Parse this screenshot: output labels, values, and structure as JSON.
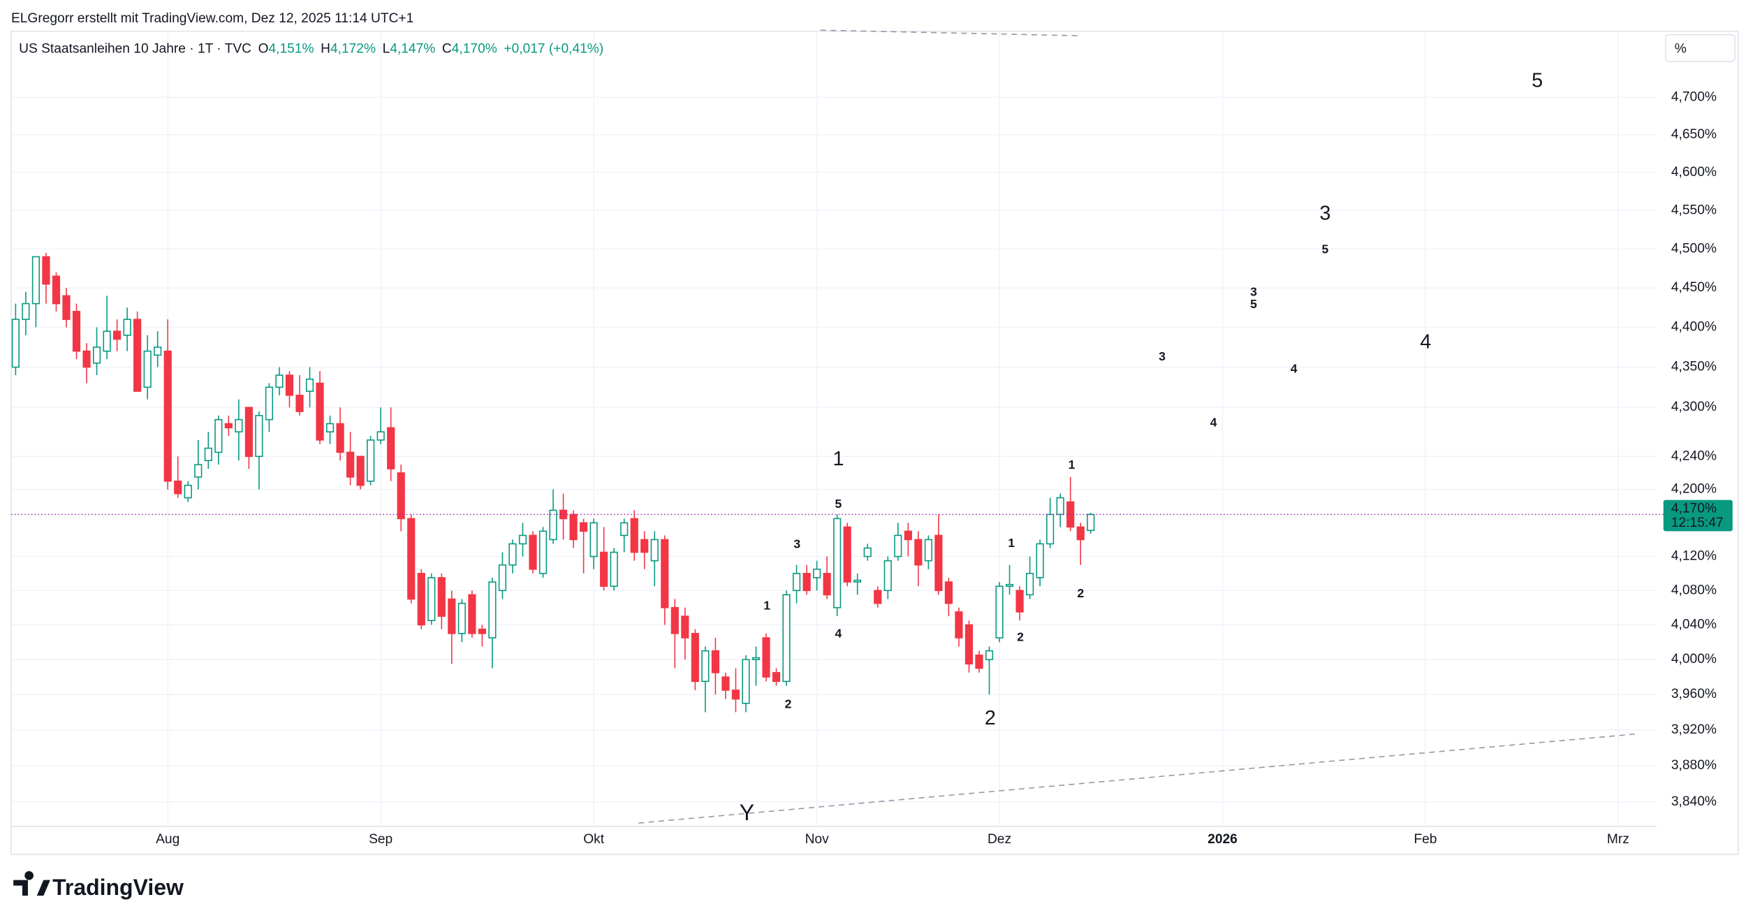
{
  "header": {
    "credit": "ELGregorr erstellt mit TradingView.com, Dez 12, 2025 11:14 UTC+1"
  },
  "legend": {
    "symbol": "US Staatsanleihen 10 Jahre · 1T · TVC",
    "items": [
      {
        "key": "O",
        "value": "4,151%"
      },
      {
        "key": "H",
        "value": "4,172%"
      },
      {
        "key": "L",
        "value": "4,147%"
      },
      {
        "key": "C",
        "value": "4,170%"
      }
    ],
    "change": "+0,017 (+0,41%)"
  },
  "price_label": {
    "value": "4,170%",
    "countdown": "12:15:47"
  },
  "footer": {
    "logo": "TradingView"
  },
  "annotations": [
    {
      "text": "5",
      "color": "#43a047"
    },
    {
      "text": "3",
      "color": "#43a047"
    },
    {
      "text": "5",
      "color": "#131722"
    },
    {
      "text": "3",
      "color": "#131722"
    },
    {
      "text": "5",
      "color": "#e91e63"
    },
    {
      "text": "3",
      "color": "#e91e63"
    },
    {
      "text": "4",
      "color": "#131722"
    },
    {
      "text": "4",
      "color": "#43a047"
    },
    {
      "text": "4",
      "color": "#e91e63"
    },
    {
      "text": "1",
      "color": "#43a047"
    },
    {
      "text": "5",
      "color": "#131722"
    },
    {
      "text": "1",
      "color": "#e91e63"
    },
    {
      "text": "3",
      "color": "#131722"
    },
    {
      "text": "1",
      "color": "#131722"
    },
    {
      "text": "1",
      "color": "#131722"
    },
    {
      "text": "2",
      "color": "#e91e63"
    },
    {
      "text": "4",
      "color": "#131722"
    },
    {
      "text": "2",
      "color": "#131722"
    },
    {
      "text": "2",
      "color": "#131722"
    },
    {
      "text": "2",
      "color": "#43a047"
    },
    {
      "text": "Y",
      "color": "#9598a1"
    }
  ],
  "chart_data": {
    "type": "candlestick",
    "log_scale": true,
    "grid": true,
    "up_color": "#089981",
    "down_color": "#f23645",
    "y_unit": "%",
    "ylim": [
      3.813,
      4.79
    ],
    "yticks": [
      {
        "value": 3.84,
        "label": "3,840%"
      },
      {
        "value": 3.88,
        "label": "3,880%"
      },
      {
        "value": 3.92,
        "label": "3,920%"
      },
      {
        "value": 3.96,
        "label": "3,960%"
      },
      {
        "value": 4.0,
        "label": "4,000%"
      },
      {
        "value": 4.04,
        "label": "4,040%"
      },
      {
        "value": 4.08,
        "label": "4,080%"
      },
      {
        "value": 4.12,
        "label": "4,120%"
      },
      {
        "value": 4.2,
        "label": "4,200%"
      },
      {
        "value": 4.24,
        "label": "4,240%"
      },
      {
        "value": 4.3,
        "label": "4,300%"
      },
      {
        "value": 4.35,
        "label": "4,350%"
      },
      {
        "value": 4.4,
        "label": "4,400%"
      },
      {
        "value": 4.45,
        "label": "4,450%"
      },
      {
        "value": 4.5,
        "label": "4,500%"
      },
      {
        "value": 4.55,
        "label": "4,550%"
      },
      {
        "value": 4.6,
        "label": "4,600%"
      },
      {
        "value": 4.65,
        "label": "4,650%"
      },
      {
        "value": 4.7,
        "label": "4,700%"
      }
    ],
    "categories": [
      null,
      null,
      null,
      null,
      null,
      null,
      null,
      null,
      null,
      null,
      null,
      null,
      null,
      null,
      null,
      "Aug",
      null,
      null,
      null,
      null,
      null,
      null,
      null,
      null,
      null,
      null,
      null,
      null,
      null,
      null,
      null,
      null,
      null,
      null,
      null,
      null,
      "Sep",
      null,
      null,
      null,
      null,
      null,
      null,
      null,
      null,
      null,
      null,
      null,
      null,
      null,
      null,
      null,
      null,
      null,
      null,
      null,
      null,
      "Okt",
      null,
      null,
      null,
      null,
      null,
      null,
      null,
      null,
      null,
      null,
      null,
      null,
      null,
      null,
      null,
      null,
      null,
      null,
      null,
      null,
      null,
      "Nov",
      null,
      null,
      null,
      null,
      null,
      null,
      null,
      null,
      null,
      null,
      null,
      null,
      null,
      null,
      null,
      null,
      null,
      "Dez",
      null,
      null,
      null,
      null,
      null,
      null,
      null,
      null,
      null,
      null,
      null,
      null,
      null,
      null,
      null,
      null,
      null,
      null,
      null,
      null,
      null,
      "2026",
      null,
      null,
      null,
      null,
      null,
      null,
      null,
      null,
      null,
      null,
      null,
      null,
      null,
      null,
      null,
      null,
      null,
      null,
      null,
      "Feb",
      null,
      null,
      null,
      null,
      null,
      null,
      null,
      null,
      null,
      null,
      null,
      null,
      null,
      null,
      null,
      null,
      null,
      null,
      "Mrz",
      null,
      null,
      null
    ],
    "open": [
      4.35,
      4.41,
      4.43,
      4.49,
      4.465,
      4.44,
      4.42,
      4.37,
      4.355,
      4.37,
      4.395,
      4.39,
      4.41,
      4.325,
      4.365,
      4.37,
      4.21,
      4.19,
      4.215,
      4.235,
      4.245,
      4.28,
      4.27,
      4.3,
      4.24,
      4.285,
      4.325,
      4.34,
      4.315,
      4.32,
      4.33,
      4.27,
      4.28,
      4.245,
      4.24,
      4.21,
      4.26,
      4.275,
      4.22,
      4.165,
      4.1,
      4.045,
      4.095,
      4.07,
      4.03,
      4.075,
      4.035,
      4.025,
      4.08,
      4.11,
      4.135,
      4.145,
      4.1,
      4.14,
      4.175,
      4.17,
      4.16,
      4.12,
      4.125,
      4.085,
      4.145,
      4.165,
      4.14,
      4.115,
      4.14,
      4.06,
      4.05,
      4.03,
      3.975,
      4.01,
      3.98,
      3.965,
      3.95,
      4.0,
      4.025,
      3.985,
      3.975,
      4.08,
      4.1,
      4.095,
      4.1,
      4.06,
      4.155,
      4.09,
      4.12,
      4.08,
      4.08,
      4.12,
      4.15,
      4.14,
      4.115,
      4.145,
      4.09,
      4.055,
      4.04,
      4.005,
      4.0,
      4.025,
      4.085,
      4.08,
      4.075,
      4.095,
      4.135,
      4.17,
      4.185,
      4.155,
      4.151,
      null,
      null,
      null,
      null,
      null,
      null,
      null,
      null,
      null,
      null,
      null,
      null,
      null,
      null,
      null,
      null,
      null,
      null,
      null,
      null,
      null,
      null,
      null,
      null,
      null,
      null,
      null,
      null,
      null,
      null,
      null,
      null,
      null,
      null,
      null,
      null,
      null,
      null,
      null,
      null,
      null,
      null,
      null,
      null,
      null,
      null,
      null,
      null,
      null,
      null,
      null,
      null,
      null,
      null,
      null
    ],
    "high": [
      4.43,
      4.445,
      4.49,
      4.495,
      4.47,
      4.45,
      4.43,
      4.38,
      4.4,
      4.44,
      4.41,
      4.425,
      4.42,
      4.39,
      4.395,
      4.41,
      4.24,
      4.21,
      4.26,
      4.27,
      4.29,
      4.29,
      4.31,
      4.3,
      4.295,
      4.33,
      4.35,
      4.345,
      4.34,
      4.35,
      4.345,
      4.29,
      4.3,
      4.27,
      4.24,
      4.265,
      4.3,
      4.3,
      4.23,
      4.17,
      4.105,
      4.1,
      4.1,
      4.08,
      4.07,
      4.08,
      4.04,
      4.095,
      4.125,
      4.14,
      4.16,
      4.15,
      4.155,
      4.2,
      4.195,
      4.175,
      4.165,
      4.165,
      4.155,
      4.13,
      4.165,
      4.175,
      4.15,
      4.15,
      4.145,
      4.07,
      4.06,
      4.035,
      4.015,
      4.025,
      3.985,
      3.99,
      4.005,
      4.015,
      4.03,
      3.99,
      4.08,
      4.11,
      4.11,
      4.115,
      4.12,
      4.17,
      4.16,
      4.1,
      4.135,
      4.085,
      4.12,
      4.16,
      4.16,
      4.15,
      4.145,
      4.17,
      4.095,
      4.06,
      4.045,
      4.01,
      4.015,
      4.09,
      4.11,
      4.085,
      4.12,
      4.14,
      4.19,
      4.195,
      4.215,
      4.16,
      4.172,
      null,
      null,
      null,
      null,
      null,
      null,
      null,
      null,
      null,
      null,
      null,
      null,
      null,
      null,
      null,
      null,
      null,
      null,
      null,
      null,
      null,
      null,
      null,
      null,
      null,
      null,
      null,
      null,
      null,
      null,
      null,
      null,
      null,
      null,
      null,
      null,
      null,
      null,
      null,
      null,
      null,
      null,
      null,
      null,
      null,
      null,
      null,
      null,
      null,
      null,
      null,
      null,
      null,
      null,
      null
    ],
    "low": [
      4.34,
      4.39,
      4.4,
      4.43,
      4.42,
      4.4,
      4.36,
      4.33,
      4.34,
      4.36,
      4.37,
      4.37,
      4.32,
      4.31,
      4.35,
      4.2,
      4.19,
      4.185,
      4.2,
      4.225,
      4.23,
      4.265,
      4.235,
      4.225,
      4.2,
      4.27,
      4.315,
      4.3,
      4.29,
      4.3,
      4.255,
      4.255,
      4.235,
      4.205,
      4.2,
      4.205,
      4.255,
      4.21,
      4.15,
      4.065,
      4.035,
      4.04,
      4.035,
      3.995,
      4.02,
      4.025,
      4.015,
      3.99,
      4.07,
      4.1,
      4.12,
      4.1,
      4.095,
      4.135,
      4.14,
      4.13,
      4.1,
      4.105,
      4.08,
      4.08,
      4.125,
      4.115,
      4.105,
      4.085,
      4.04,
      3.99,
      4.0,
      3.965,
      3.94,
      3.96,
      3.955,
      3.94,
      3.94,
      3.97,
      3.975,
      3.97,
      3.97,
      4.065,
      4.075,
      4.08,
      4.07,
      4.05,
      4.085,
      4.075,
      4.115,
      4.06,
      4.07,
      4.115,
      4.12,
      4.085,
      4.105,
      4.075,
      4.05,
      4.015,
      3.985,
      3.985,
      3.96,
      4.02,
      4.075,
      4.045,
      4.07,
      4.085,
      4.13,
      4.155,
      4.15,
      4.11,
      4.147,
      null,
      null,
      null,
      null,
      null,
      null,
      null,
      null,
      null,
      null,
      null,
      null,
      null,
      null,
      null,
      null,
      null,
      null,
      null,
      null,
      null,
      null,
      null,
      null,
      null,
      null,
      null,
      null,
      null,
      null,
      null,
      null,
      null,
      null,
      null,
      null,
      null,
      null,
      null,
      null,
      null,
      null,
      null,
      null,
      null,
      null,
      null,
      null,
      null,
      null,
      null,
      null,
      null,
      null,
      null
    ],
    "close": [
      4.41,
      4.43,
      4.49,
      4.455,
      4.43,
      4.41,
      4.37,
      4.35,
      4.375,
      4.395,
      4.385,
      4.41,
      4.32,
      4.37,
      4.375,
      4.21,
      4.195,
      4.205,
      4.23,
      4.25,
      4.285,
      4.275,
      4.285,
      4.24,
      4.29,
      4.325,
      4.34,
      4.315,
      4.295,
      4.335,
      4.26,
      4.28,
      4.245,
      4.215,
      4.205,
      4.26,
      4.27,
      4.225,
      4.165,
      4.07,
      4.04,
      4.095,
      4.05,
      4.03,
      4.065,
      4.03,
      4.03,
      4.09,
      4.11,
      4.135,
      4.145,
      4.105,
      4.15,
      4.175,
      4.165,
      4.14,
      4.15,
      4.16,
      4.085,
      4.125,
      4.16,
      4.125,
      4.125,
      4.14,
      4.06,
      4.03,
      4.025,
      3.975,
      4.01,
      3.985,
      3.965,
      3.955,
      4.0,
      4.002,
      3.98,
      3.975,
      4.075,
      4.1,
      4.08,
      4.105,
      4.075,
      4.165,
      4.09,
      4.092,
      4.13,
      4.065,
      4.115,
      4.145,
      4.14,
      4.11,
      4.14,
      4.08,
      4.065,
      4.025,
      3.995,
      3.99,
      4.01,
      4.085,
      4.087,
      4.055,
      4.1,
      4.135,
      4.17,
      4.19,
      4.155,
      4.14,
      4.17,
      null,
      null,
      null,
      null,
      null,
      null,
      null,
      null,
      null,
      null,
      null,
      null,
      null,
      null,
      null,
      null,
      null,
      null,
      null,
      null,
      null,
      null,
      null,
      null,
      null,
      null,
      null,
      null,
      null,
      null,
      null,
      null,
      null,
      null,
      null,
      null,
      null,
      null,
      null,
      null,
      null,
      null,
      null,
      null,
      null,
      null,
      null,
      null,
      null,
      null,
      null,
      null,
      null,
      null,
      null
    ]
  }
}
